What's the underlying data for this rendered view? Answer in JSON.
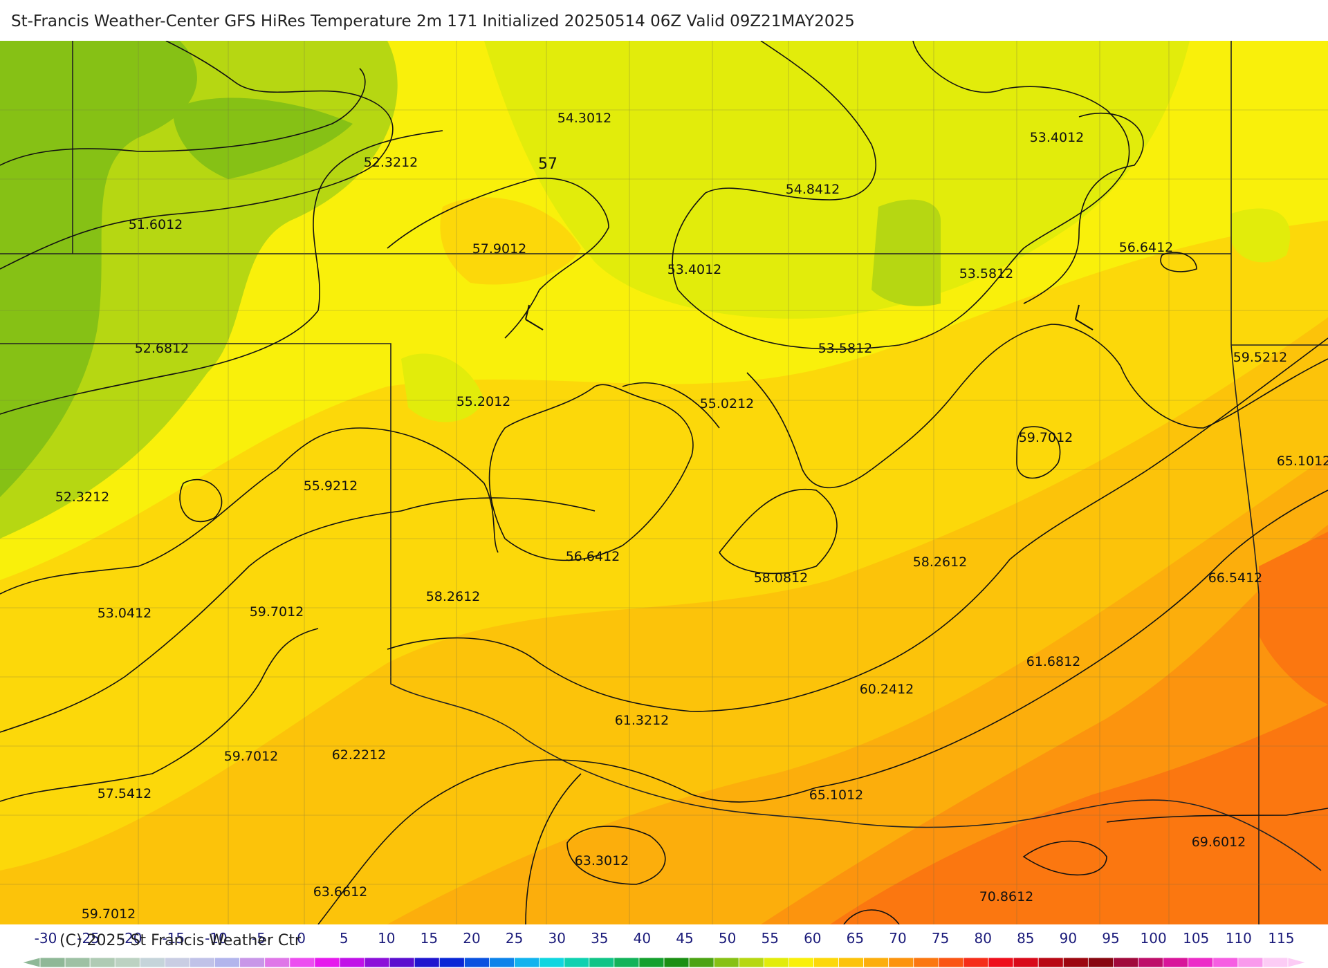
{
  "title": "St-Francis Weather-Center GFS HiRes Temperature 2m  171 Initialized 20250514 06Z Valid 09Z21MAY2025",
  "copyright": "(C) 2025 St Francis Weather Ctr",
  "contour_label": "57",
  "station_values": [
    {
      "value": "54.3012"
    },
    {
      "value": "53.4012"
    },
    {
      "value": "52.3212"
    },
    {
      "value": "54.8412"
    },
    {
      "value": "51.6012"
    },
    {
      "value": "57.9012"
    },
    {
      "value": "53.4012"
    },
    {
      "value": "53.5812"
    },
    {
      "value": "56.6412"
    },
    {
      "value": "52.6812"
    },
    {
      "value": "53.5812"
    },
    {
      "value": "59.5212"
    },
    {
      "value": "55.2012"
    },
    {
      "value": "55.0212"
    },
    {
      "value": "59.7012"
    },
    {
      "value": "65.1012"
    },
    {
      "value": "52.3212"
    },
    {
      "value": "55.9212"
    },
    {
      "value": "56.6412"
    },
    {
      "value": "58.0812"
    },
    {
      "value": "58.2612"
    },
    {
      "value": "66.5412"
    },
    {
      "value": "58.2612"
    },
    {
      "value": "53.0412"
    },
    {
      "value": "59.7012"
    },
    {
      "value": "61.6812"
    },
    {
      "value": "60.2412"
    },
    {
      "value": "61.3212"
    },
    {
      "value": "59.7012"
    },
    {
      "value": "62.2212"
    },
    {
      "value": "57.5412"
    },
    {
      "value": "65.1012"
    },
    {
      "value": "69.6012"
    },
    {
      "value": "63.3012"
    },
    {
      "value": "63.6612"
    },
    {
      "value": "59.7012"
    },
    {
      "value": "70.8612"
    }
  ],
  "colorbar": {
    "ticks": [
      "-30",
      "-25",
      "-20",
      "-15",
      "-10",
      "-5",
      "0",
      "5",
      "10",
      "15",
      "20",
      "25",
      "30",
      "35",
      "40",
      "45",
      "50",
      "55",
      "60",
      "65",
      "70",
      "75",
      "80",
      "85",
      "90",
      "95",
      "100",
      "105",
      "110",
      "115"
    ],
    "colors": [
      "#8fb897",
      "#9ec1a4",
      "#afcbb4",
      "#bcd2c2",
      "#c5d4da",
      "#c9cde3",
      "#c0c2e8",
      "#b2b5ec",
      "#c897e8",
      "#df77e8",
      "#ec4ff0",
      "#e61aed",
      "#c112e8",
      "#8c10d9",
      "#5a0fcf",
      "#1f16cf",
      "#0a27d6",
      "#0a52e0",
      "#0d83ea",
      "#12b3ee",
      "#10d6e0",
      "#0fd1b0",
      "#10c487",
      "#12b35a",
      "#14a02e",
      "#1a8f13",
      "#4ba313",
      "#86c115",
      "#b6d712",
      "#e2ec0b",
      "#f9f00b",
      "#fcd80a",
      "#fcc30a",
      "#fcae0c",
      "#fc940e",
      "#fb7710",
      "#fa5614",
      "#f52e1a",
      "#ee0f1c",
      "#d80a1a",
      "#b80915",
      "#9c0710",
      "#870710",
      "#a00a3c",
      "#bd0f6a",
      "#d8159a",
      "#ec2dc8",
      "#f65ee2",
      "#f99aec",
      "#fcccf5"
    ]
  },
  "legend_colors": {
    "low": "#8fb897",
    "high": "#fcccf5"
  }
}
